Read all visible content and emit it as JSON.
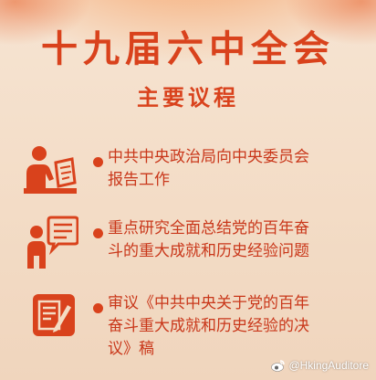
{
  "poster": {
    "title": "十九届六中全会",
    "subtitle": "主要议程",
    "accent_color": "#d9421c",
    "background_color": "#f4dcc4",
    "items": [
      {
        "icon": "reporting-speaker-icon",
        "text": "中共中央政治局向中央委员会\n报告工作"
      },
      {
        "icon": "discussion-speaker-icon",
        "text": "重点研究全面总结党的百年奋\n斗的重大成就和历史经验问题"
      },
      {
        "icon": "document-edit-icon",
        "text": "审议《中共中央关于党的百年\n奋斗重大成就和历史经验的决\n议》稿"
      }
    ]
  },
  "watermark": {
    "icon": "weibo-logo-icon",
    "text": "@HkingAuditore"
  }
}
